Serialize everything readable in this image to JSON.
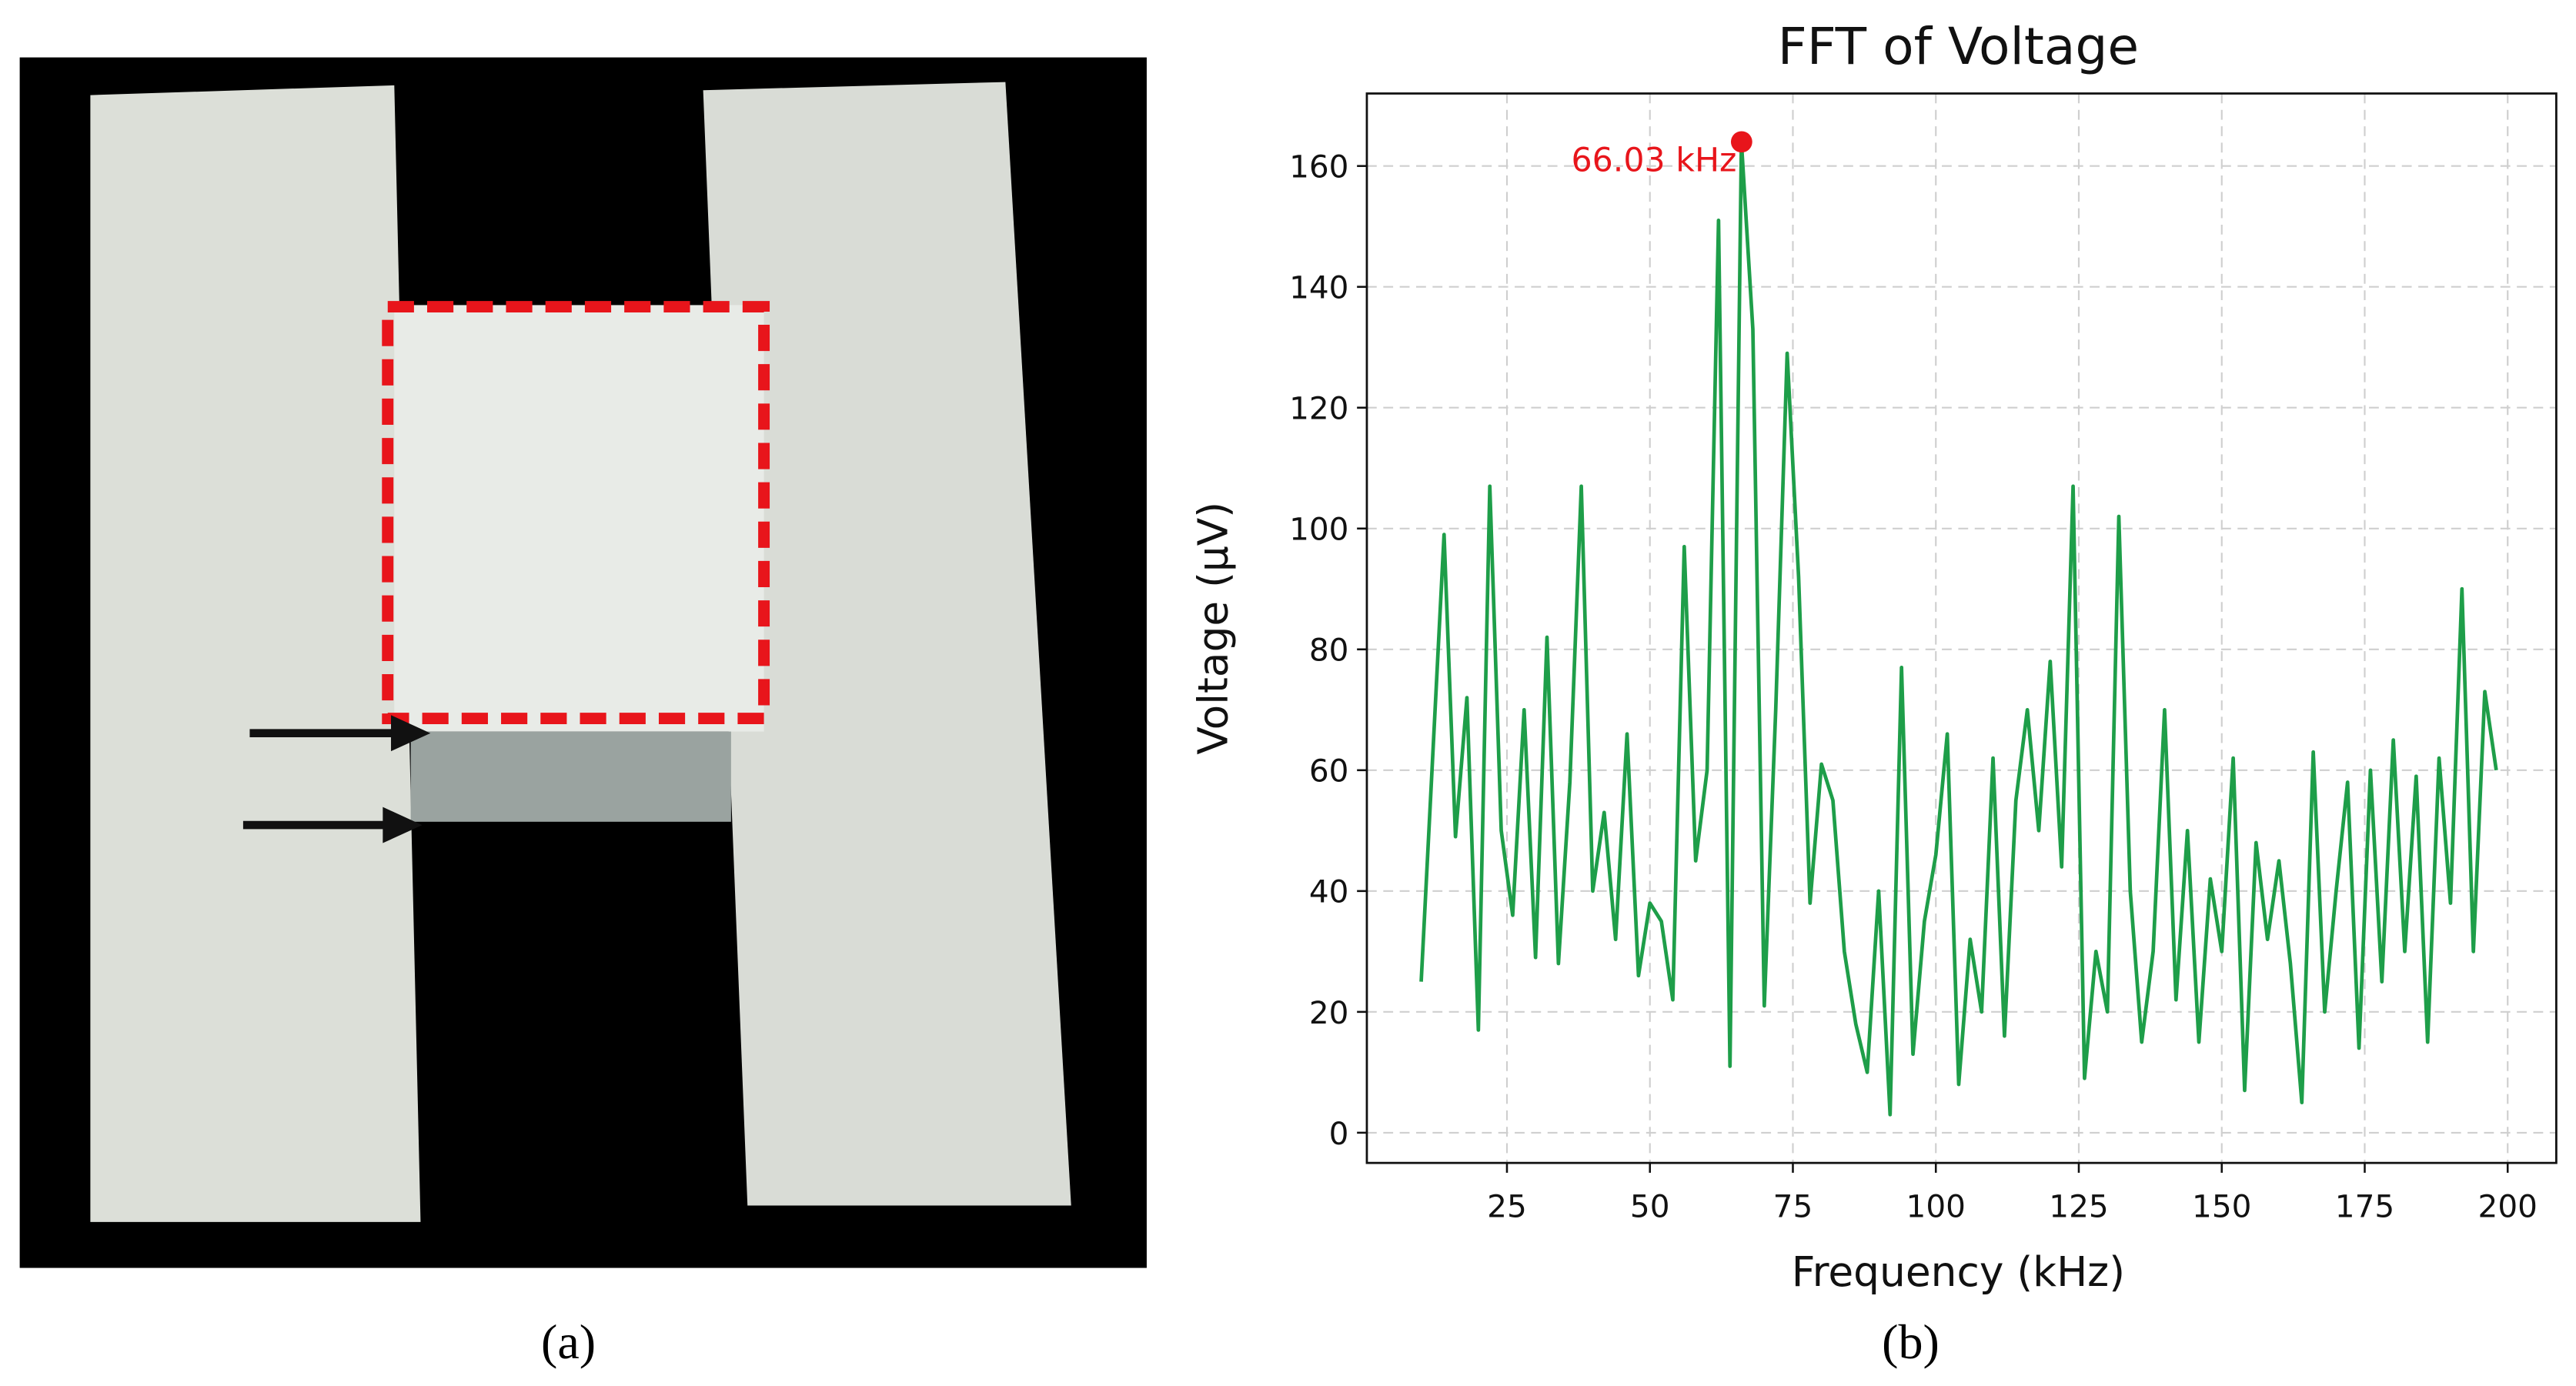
{
  "panels": {
    "a": {
      "label": "(a)"
    },
    "b": {
      "label": "(b)"
    }
  },
  "chart_data": {
    "type": "line",
    "title": "FFT of Voltage",
    "x_label": "Frequency (kHz)",
    "y_label": "Voltage (μV)",
    "x": [
      10,
      12,
      14,
      16,
      18,
      20,
      22,
      24,
      26,
      28,
      30,
      32,
      34,
      36,
      38,
      40,
      42,
      44,
      46,
      48,
      50,
      52,
      54,
      56,
      58,
      60,
      62,
      64,
      66,
      68,
      70,
      72,
      74,
      76,
      78,
      80,
      82,
      84,
      86,
      88,
      90,
      92,
      94,
      96,
      98,
      100,
      102,
      104,
      106,
      108,
      110,
      112,
      114,
      116,
      118,
      120,
      122,
      124,
      126,
      128,
      130,
      132,
      134,
      136,
      138,
      140,
      142,
      144,
      146,
      148,
      150,
      152,
      154,
      156,
      158,
      160,
      162,
      164,
      166,
      168,
      170,
      172,
      174,
      176,
      178,
      180,
      182,
      184,
      186,
      188,
      190,
      192,
      194,
      196,
      198
    ],
    "values": [
      25,
      62,
      99,
      49,
      72,
      17,
      107,
      50,
      36,
      70,
      29,
      82,
      28,
      58,
      107,
      40,
      53,
      32,
      66,
      26,
      38,
      35,
      22,
      97,
      45,
      60,
      151,
      11,
      164,
      133,
      21,
      70,
      129,
      92,
      38,
      61,
      55,
      30,
      18,
      10,
      40,
      3,
      77,
      13,
      35,
      46,
      66,
      8,
      32,
      20,
      62,
      16,
      55,
      70,
      50,
      78,
      44,
      107,
      9,
      30,
      20,
      102,
      40,
      15,
      30,
      70,
      22,
      50,
      15,
      42,
      30,
      62,
      7,
      48,
      32,
      45,
      28,
      5,
      63,
      20,
      40,
      58,
      14,
      60,
      25,
      65,
      30,
      59,
      15,
      62,
      38,
      90,
      30,
      73,
      60
    ],
    "color": "#1e9e49",
    "xlim": [
      0.5,
      208.5
    ],
    "ylim": [
      -5,
      172
    ],
    "xticks": [
      25,
      50,
      75,
      100,
      125,
      150,
      175,
      200
    ],
    "yticks": [
      0,
      20,
      40,
      60,
      80,
      100,
      120,
      140,
      160
    ],
    "grid": true,
    "annotation": {
      "text": "66.03 kHz",
      "x": 66.03,
      "y": 164,
      "color": "#e8151b"
    }
  }
}
